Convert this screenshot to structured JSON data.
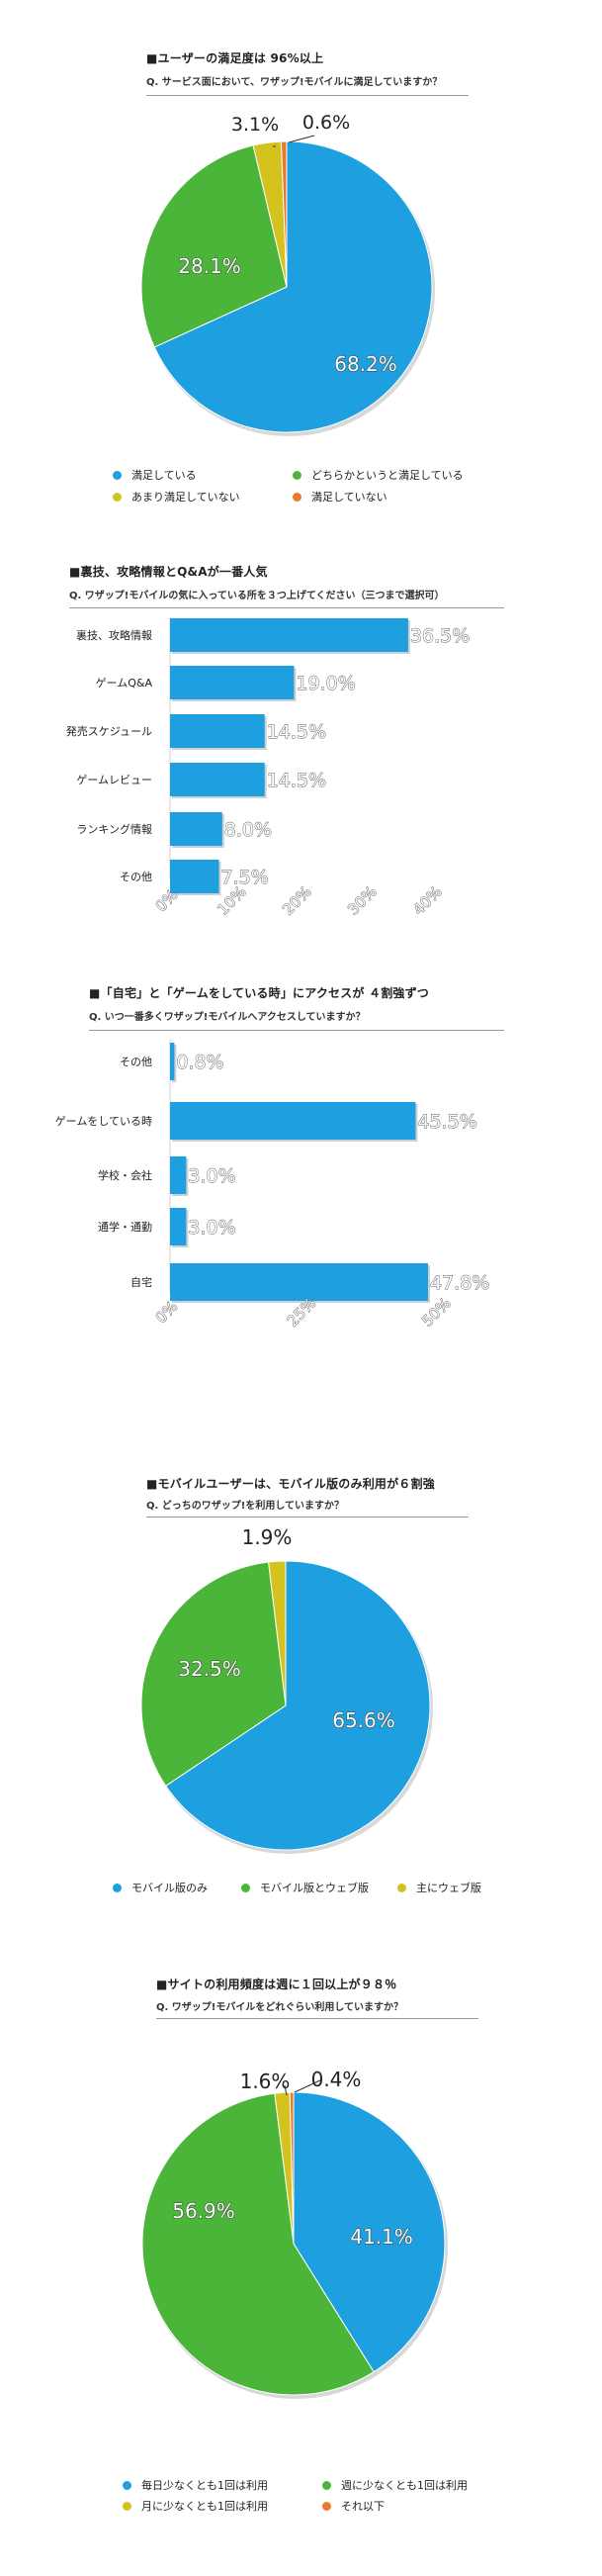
{
  "colors": {
    "blue": "#1d9fe0",
    "green": "#4bb53a",
    "yellow": "#d4c21f",
    "orange": "#ea7a2a"
  },
  "charts": [
    {
      "title": "■ユーザーの満足度は 96%以上",
      "question": "Q. サービス面において、ワザップ!モバイルに満足していますか？",
      "legend": [
        "満足している",
        "どちらかというと満足している",
        "あまり満足していない",
        "満足していない"
      ]
    },
    {
      "title": "■裏技、攻略情報とQ&Aが一番人気",
      "question": "Q. ワザップ!モバイルの気に入っている所を３つ上げてください（三つまで選択可）"
    },
    {
      "title": "■「自宅」と「ゲームをしている時」にアクセスが ４割強ずつ",
      "question": "Q. いつ一番多くワザップ!モバイルへアクセスしていますか？"
    },
    {
      "title": "■モバイルユーザーは、モバイル版のみ利用が６割強",
      "question": "Q. どっちのワザップ!を利用していますか？",
      "legend": [
        "モバイル版のみ",
        "モバイル版とウェブ版",
        "主にウェブ版"
      ]
    },
    {
      "title": "■サイトの利用頻度は週に１回以上が９８％",
      "question": "Q. ワザップ!モバイルをどれぐらい利用していますか？",
      "legend": [
        "毎日少なくとも1回は利用",
        "週に少なくとも1回は利用",
        "月に少なくとも1回は利用",
        "それ以下"
      ]
    }
  ],
  "chart_data": [
    {
      "type": "pie",
      "title": "■ユーザーの満足度は 96%以上",
      "labels": [
        "満足している",
        "どちらかというと満足している",
        "あまり満足していない",
        "満足していない"
      ],
      "values": [
        68.2,
        28.1,
        3.1,
        0.6
      ],
      "value_labels": [
        "68.2%",
        "28.1%",
        "3.1%",
        "0.6%"
      ],
      "colors": [
        "#1d9fe0",
        "#4bb53a",
        "#d4c21f",
        "#ea7a2a"
      ],
      "legend_position": "bottom"
    },
    {
      "type": "bar",
      "orientation": "horizontal",
      "title": "■裏技、攻略情報とQ&Aが一番人気",
      "categories": [
        "裏技、攻略情報",
        "ゲームQ&A",
        "発売スケジュール",
        "ゲームレビュー",
        "ランキング情報",
        "その他"
      ],
      "values": [
        36.5,
        19.0,
        14.5,
        14.5,
        8.0,
        7.5
      ],
      "value_labels": [
        "36.5%",
        "19.0%",
        "14.5%",
        "14.5%",
        "8.0%",
        "7.5%"
      ],
      "xlim": [
        0,
        40
      ],
      "ticks": [
        "0%",
        "10%",
        "20%",
        "30%",
        "40%"
      ],
      "tick_values": [
        0,
        10,
        20,
        30,
        40
      ]
    },
    {
      "type": "bar",
      "orientation": "horizontal",
      "title": "■「自宅」と「ゲームをしている時」にアクセスが ４割強ずつ",
      "categories": [
        "その他",
        "ゲームをしている時",
        "学校・会社",
        "通学・通勤",
        "自宅"
      ],
      "values": [
        0.8,
        45.5,
        3.0,
        3.0,
        47.8
      ],
      "value_labels": [
        "0.8%",
        "45.5%",
        "3.0%",
        "3.0%",
        "47.8%"
      ],
      "xlim": [
        0,
        50
      ],
      "ticks": [
        "0%",
        "25%",
        "50%"
      ],
      "tick_values": [
        0,
        25,
        50
      ]
    },
    {
      "type": "pie",
      "title": "■モバイルユーザーは、モバイル版のみ利用が６割強",
      "labels": [
        "モバイル版のみ",
        "モバイル版とウェブ版",
        "主にウェブ版"
      ],
      "values": [
        65.6,
        32.5,
        1.9
      ],
      "value_labels": [
        "65.6%",
        "32.5%",
        "1.9%"
      ],
      "colors": [
        "#1d9fe0",
        "#4bb53a",
        "#d4c21f"
      ],
      "legend_position": "bottom"
    },
    {
      "type": "pie",
      "title": "■サイトの利用頻度は週に１回以上が９８％",
      "labels": [
        "毎日少なくとも1回は利用",
        "週に少なくとも1回は利用",
        "月に少なくとも1回は利用",
        "それ以下"
      ],
      "values": [
        41.1,
        56.9,
        1.6,
        0.4
      ],
      "value_labels": [
        "41.1%",
        "56.9%",
        "1.6%",
        "0.4%"
      ],
      "colors": [
        "#1d9fe0",
        "#4bb53a",
        "#d4c21f",
        "#ea7a2a"
      ],
      "legend_position": "bottom"
    }
  ]
}
